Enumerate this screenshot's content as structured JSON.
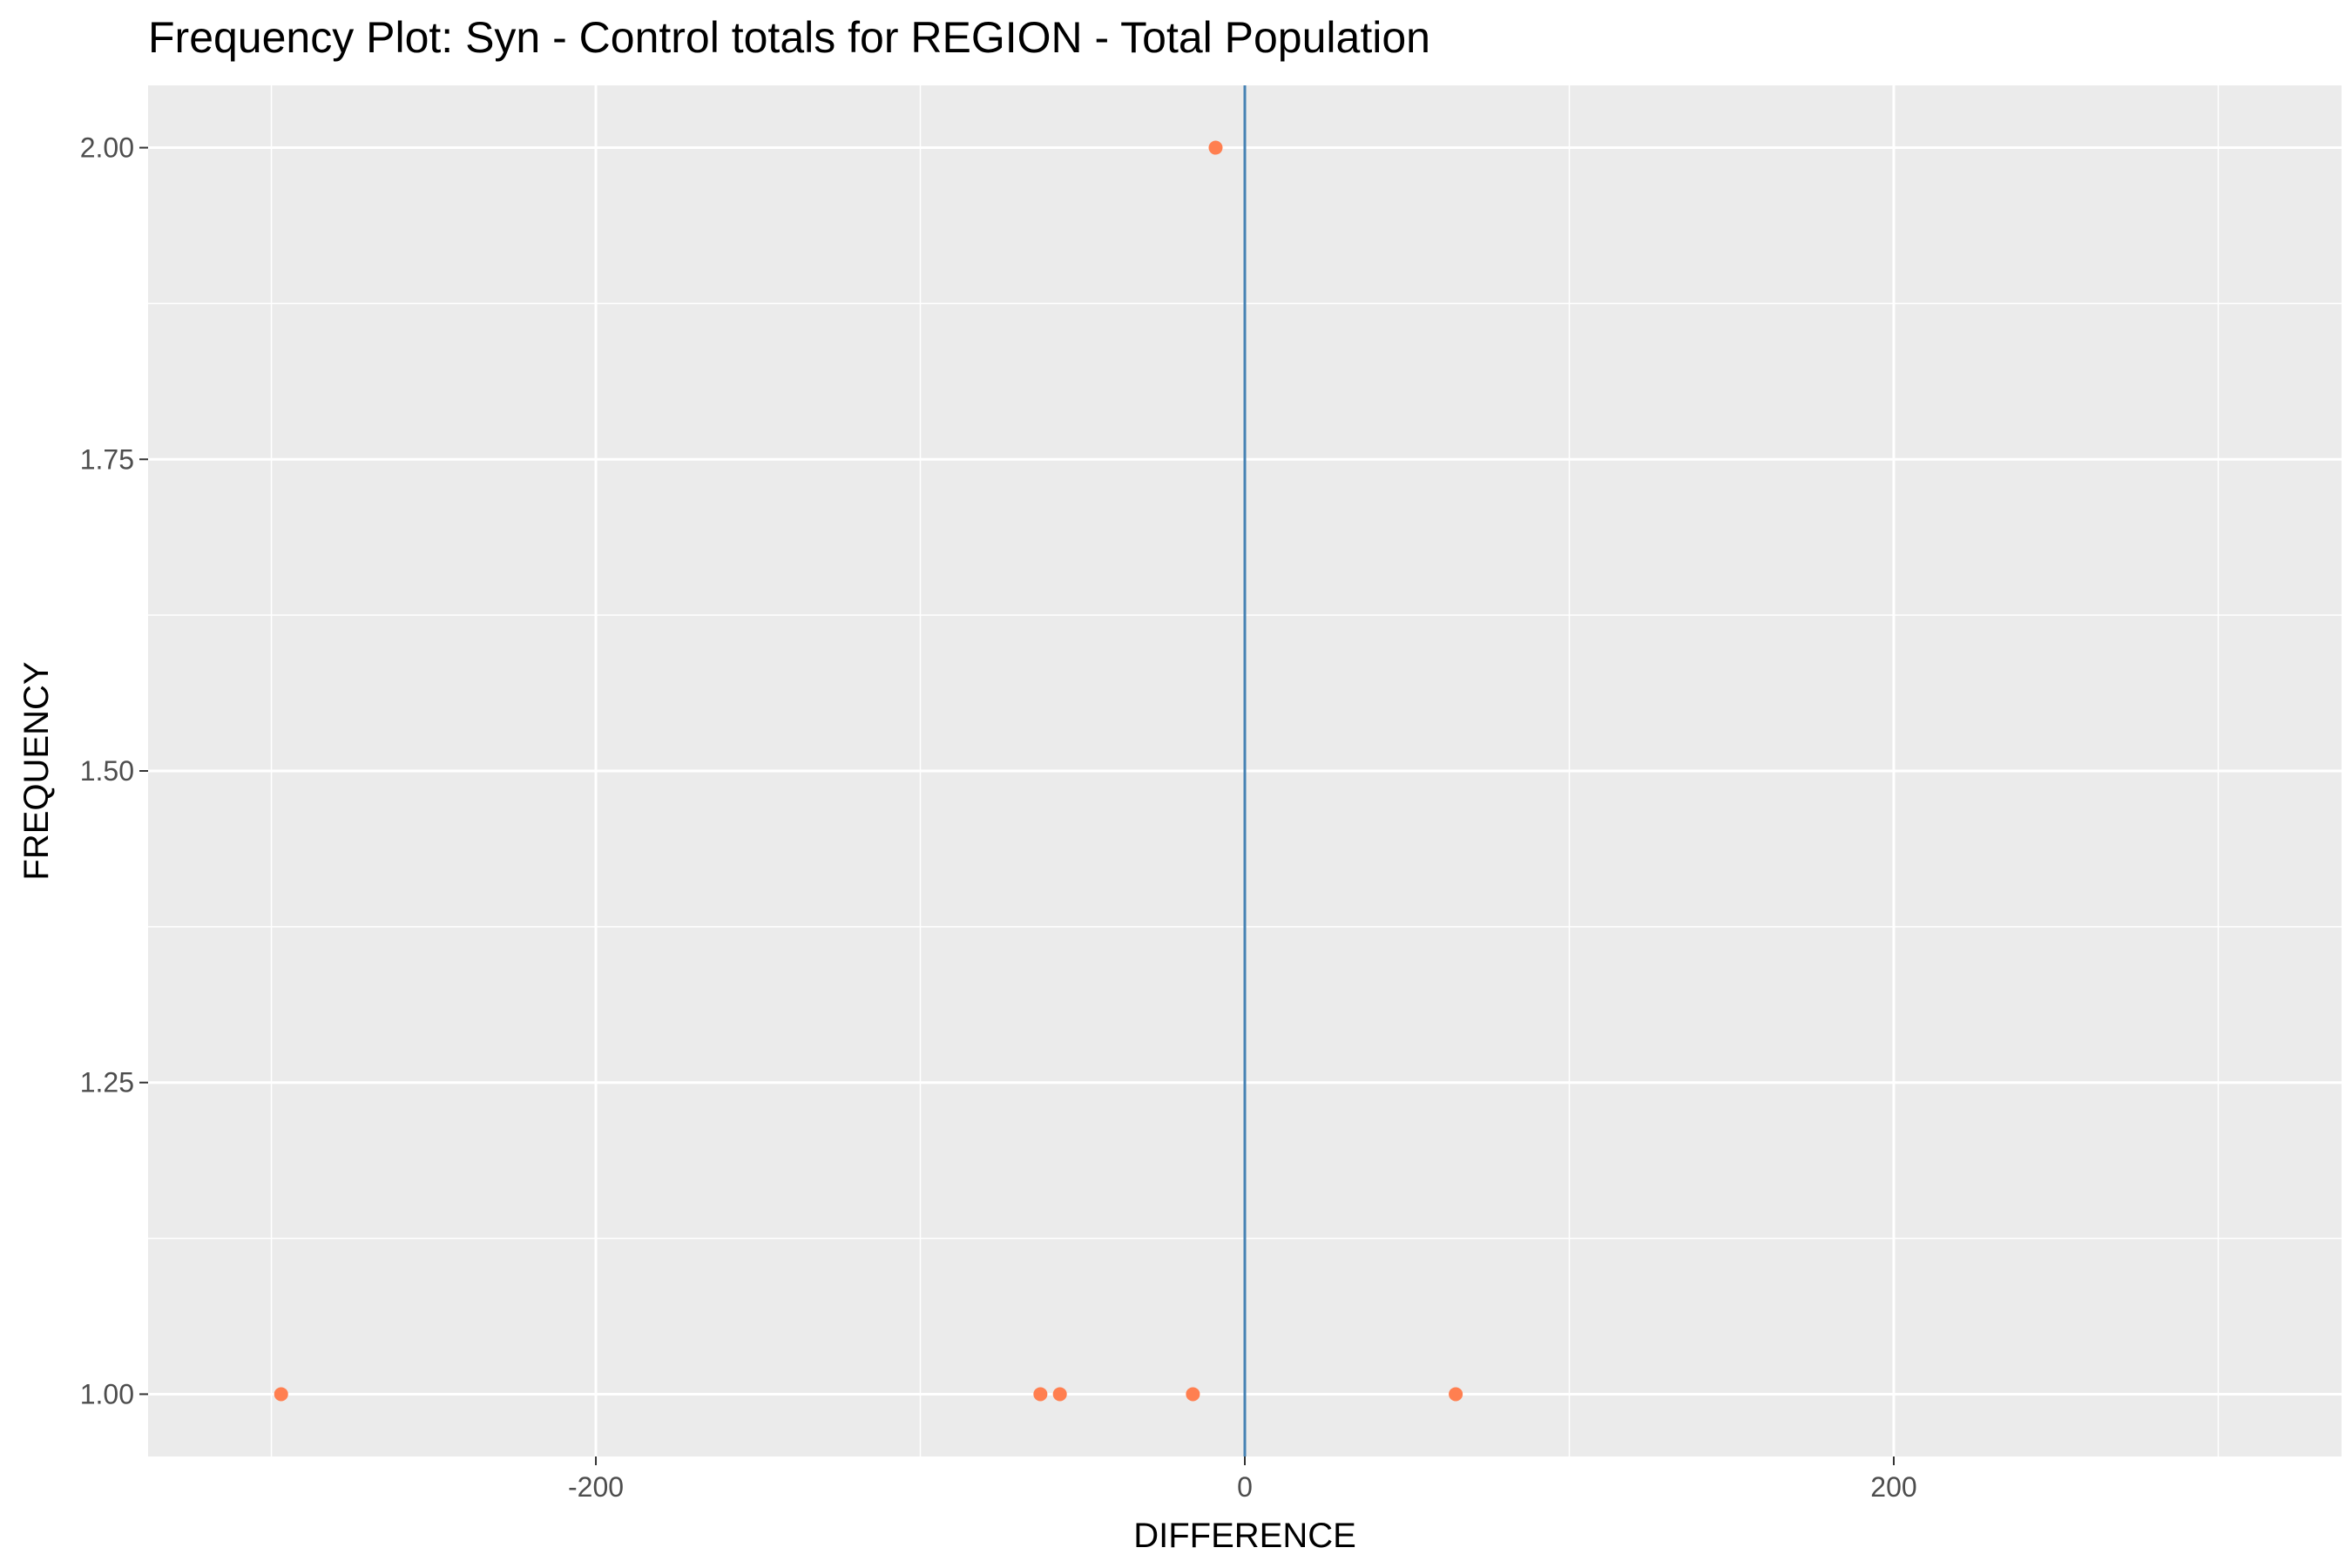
{
  "chart_data": {
    "type": "scatter",
    "title": "Frequency Plot: Syn - Control totals for REGION - Total Population",
    "xlabel": "DIFFERENCE",
    "ylabel": "FREQUENCY",
    "xlim": [
      -338,
      338
    ],
    "ylim": [
      0.95,
      2.05
    ],
    "x_ticks": [
      -200,
      0,
      200
    ],
    "x_tick_labels": [
      "-200",
      "0",
      "200"
    ],
    "x_minor_ticks": [
      -300,
      -100,
      100,
      300
    ],
    "y_ticks": [
      1.0,
      1.25,
      1.5,
      1.75,
      2.0
    ],
    "y_tick_labels": [
      "1.00",
      "1.25",
      "1.50",
      "1.75",
      "2.00"
    ],
    "y_minor_ticks": [
      1.125,
      1.375,
      1.625,
      1.875
    ],
    "grid": true,
    "reference_line": {
      "x": 0,
      "color": "#4682B4"
    },
    "point_color": "#FF7F50",
    "panel_color": "#EBEBEB",
    "points": [
      {
        "x": -297,
        "y": 1
      },
      {
        "x": -63,
        "y": 1
      },
      {
        "x": -57,
        "y": 1
      },
      {
        "x": -16,
        "y": 1
      },
      {
        "x": 65,
        "y": 1
      },
      {
        "x": -9,
        "y": 2
      }
    ]
  }
}
